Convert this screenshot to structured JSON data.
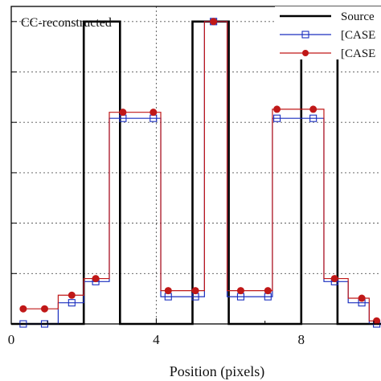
{
  "chart_data": {
    "type": "line",
    "annotation": "CC-reconstructed",
    "xlabel": "Position (pixels)",
    "ylabel": "",
    "xlim": [
      0,
      10.2
    ],
    "ylim": [
      0,
      1.05
    ],
    "xticks": [
      0,
      4,
      8
    ],
    "yticks": [
      0,
      0.1667,
      0.3333,
      0.5,
      0.6667,
      0.8333,
      1.0
    ],
    "grid": "dashed",
    "legend_position": "top-right",
    "series": [
      {
        "name": "Source",
        "style": "step",
        "color": "#000000",
        "marker": "none",
        "x": [
          0,
          2,
          2,
          3,
          3,
          5,
          5,
          6,
          6,
          8,
          8,
          9,
          9,
          10.2
        ],
        "y": [
          0,
          0,
          1,
          1,
          0,
          0,
          1,
          1,
          0,
          0,
          1,
          1,
          0,
          0
        ]
      },
      {
        "name": "[CASE",
        "style": "steps-mid",
        "color": "#1a2fbf",
        "marker": "open-square",
        "x": [
          0.33,
          0.92,
          1.67,
          2.33,
          3.08,
          3.92,
          4.33,
          5.08,
          5.58,
          6.33,
          7.08,
          7.33,
          8.33,
          8.92,
          9.67,
          10.08
        ],
        "y": [
          0.0,
          0.0,
          0.07,
          0.14,
          0.68,
          0.68,
          0.09,
          0.09,
          1.0,
          0.09,
          0.09,
          0.68,
          0.68,
          0.14,
          0.07,
          0.0
        ]
      },
      {
        "name": "[CASE",
        "style": "steps-mid",
        "color": "#c01818",
        "marker": "filled-circle",
        "x": [
          0.33,
          0.92,
          1.67,
          2.33,
          3.08,
          3.92,
          4.33,
          5.08,
          5.58,
          6.33,
          7.08,
          7.33,
          8.33,
          8.92,
          9.67,
          10.08
        ],
        "y": [
          0.05,
          0.05,
          0.095,
          0.15,
          0.7,
          0.7,
          0.11,
          0.11,
          1.0,
          0.11,
          0.11,
          0.71,
          0.71,
          0.15,
          0.085,
          0.01
        ]
      }
    ]
  }
}
